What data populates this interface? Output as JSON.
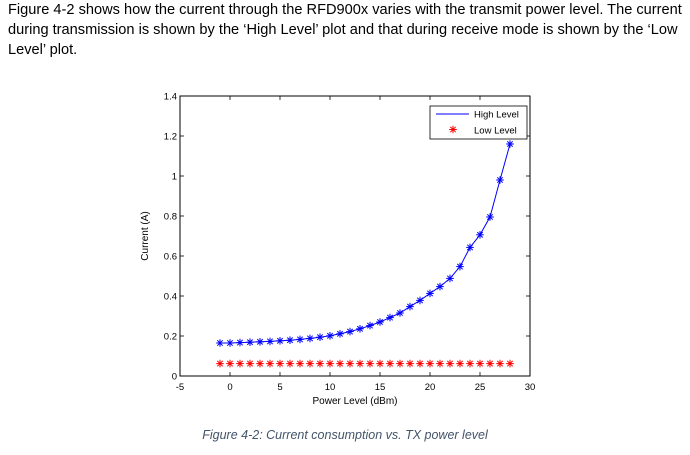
{
  "intro_text": "Figure 4-2 shows how the current through the RFD900x varies with the transmit power level. The current during transmission is shown by the ‘High Level’ plot and that during receive mode is shown by the ‘Low Level’ plot.",
  "caption": "Figure 4-2: Current consumption vs. TX power level",
  "chart_data": {
    "type": "line",
    "xlabel": "Power Level (dBm)",
    "ylabel": "Current (A)",
    "xlim": [
      -5,
      30
    ],
    "ylim": [
      0,
      1.4
    ],
    "xticks": [
      -5,
      0,
      5,
      10,
      15,
      20,
      25,
      30
    ],
    "yticks": [
      0,
      0.2,
      0.4,
      0.6,
      0.8,
      1,
      1.2,
      1.4
    ],
    "xtick_labels": [
      "-5",
      "0",
      "5",
      "10",
      "15",
      "20",
      "25",
      "30"
    ],
    "ytick_labels": [
      "0",
      "0.2",
      "0.4",
      "0.6",
      "0.8",
      "1",
      "1.2",
      "1.4"
    ],
    "grid": false,
    "legend_position": "top-right",
    "series": [
      {
        "name": "High Level",
        "color": "#0000ff",
        "marker": "star",
        "line": true,
        "x": [
          -1,
          0,
          1,
          2,
          3,
          4,
          5,
          6,
          7,
          8,
          9,
          10,
          11,
          12,
          13,
          14,
          15,
          16,
          17,
          18,
          19,
          20,
          21,
          22,
          23,
          24,
          25,
          26,
          27,
          28
        ],
        "y": [
          0.165,
          0.165,
          0.167,
          0.169,
          0.171,
          0.173,
          0.176,
          0.179,
          0.183,
          0.188,
          0.194,
          0.201,
          0.211,
          0.222,
          0.236,
          0.252,
          0.27,
          0.292,
          0.315,
          0.347,
          0.378,
          0.413,
          0.447,
          0.488,
          0.547,
          0.643,
          0.706,
          0.795,
          0.98,
          1.16
        ]
      },
      {
        "name": "Low Level",
        "color": "#ff0000",
        "marker": "star",
        "line": false,
        "x": [
          -1,
          0,
          1,
          2,
          3,
          4,
          5,
          6,
          7,
          8,
          9,
          10,
          11,
          12,
          13,
          14,
          15,
          16,
          17,
          18,
          19,
          20,
          21,
          22,
          23,
          24,
          25,
          26,
          27,
          28
        ],
        "y": [
          0.062,
          0.062,
          0.062,
          0.062,
          0.062,
          0.062,
          0.062,
          0.062,
          0.062,
          0.062,
          0.062,
          0.062,
          0.062,
          0.062,
          0.062,
          0.062,
          0.062,
          0.062,
          0.062,
          0.062,
          0.062,
          0.062,
          0.062,
          0.062,
          0.062,
          0.062,
          0.062,
          0.062,
          0.062,
          0.062
        ]
      }
    ]
  }
}
